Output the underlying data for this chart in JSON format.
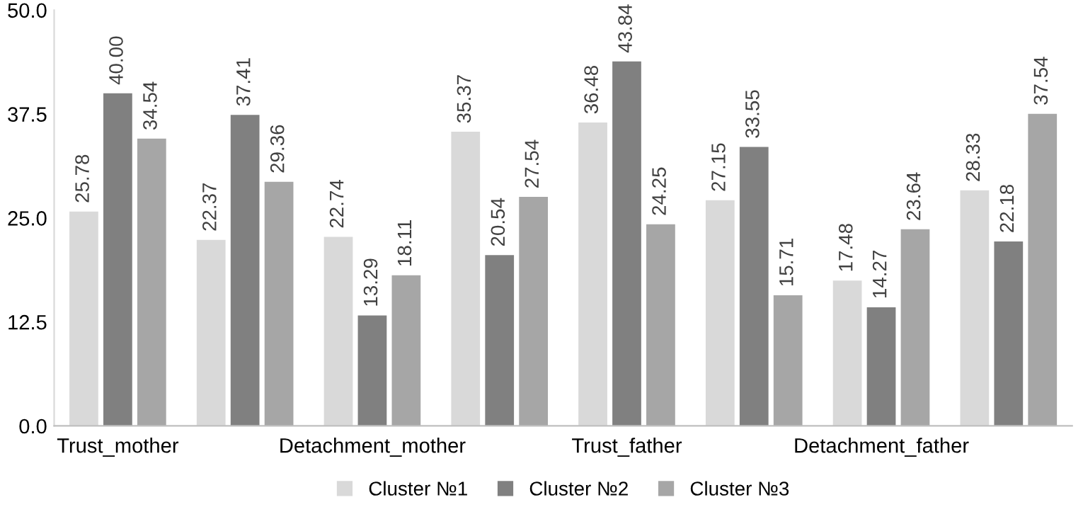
{
  "chart_data": {
    "type": "bar",
    "categories": [
      "Trust_mother",
      null,
      "Detachment_mother",
      null,
      "Trust_father",
      null,
      "Detachment_father",
      null
    ],
    "series": [
      {
        "name": "Cluster №1",
        "color": "#d9d9d9",
        "values": [
          25.78,
          22.37,
          22.74,
          35.37,
          36.48,
          27.15,
          17.48,
          28.33
        ],
        "value_labels": [
          "25.78",
          "22.37",
          "22.74",
          "35.37",
          "36.48",
          "27.15",
          "17.48",
          "28.33"
        ]
      },
      {
        "name": "Cluster №2",
        "color": "#808080",
        "values": [
          40.0,
          37.41,
          13.29,
          20.54,
          43.84,
          33.55,
          14.27,
          22.18
        ],
        "value_labels": [
          "40.00",
          "37.41",
          "13.29",
          "20.54",
          "43.84",
          "33.55",
          "14.27",
          "22.18"
        ]
      },
      {
        "name": "Cluster №3",
        "color": "#a6a6a6",
        "values": [
          34.54,
          29.36,
          18.11,
          27.54,
          24.25,
          15.71,
          23.64,
          37.54
        ],
        "value_labels": [
          "34.54",
          "29.36",
          "18.11",
          "27.54",
          "24.25",
          "15.71",
          "23.64",
          "37.54"
        ]
      }
    ],
    "ylim": [
      0,
      50
    ],
    "yticks": [
      {
        "value": 0,
        "label": "0.0"
      },
      {
        "value": 12.5,
        "label": "12.5"
      },
      {
        "value": 25,
        "label": "25.0"
      },
      {
        "value": 37.5,
        "label": "37.5"
      },
      {
        "value": 50,
        "label": "50.0"
      }
    ],
    "grid": false,
    "legend": "bottom"
  }
}
